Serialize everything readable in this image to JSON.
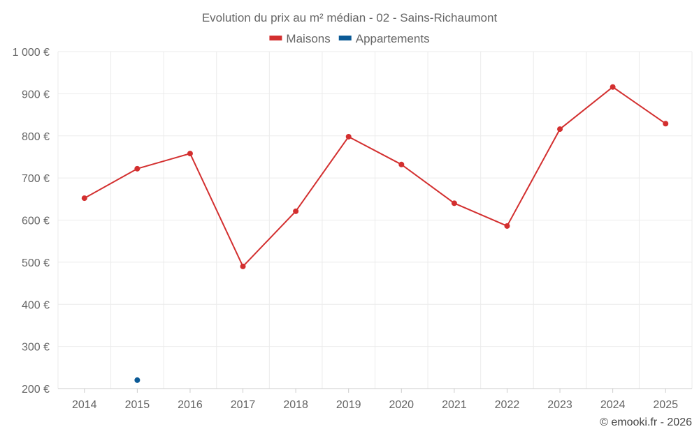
{
  "chart_data": {
    "type": "line",
    "title": "Evolution du prix au m² médian - 02 - Sains-Richaumont",
    "xlabel": "",
    "ylabel": "",
    "categories": [
      "2014",
      "2015",
      "2016",
      "2017",
      "2018",
      "2019",
      "2020",
      "2021",
      "2022",
      "2023",
      "2024",
      "2025"
    ],
    "y_ticks": [
      "200 €",
      "300 €",
      "400 €",
      "500 €",
      "600 €",
      "700 €",
      "800 €",
      "900 €",
      "1 000 €"
    ],
    "ylim": [
      200,
      1000
    ],
    "grid": true,
    "legend_position": "top",
    "series": [
      {
        "name": "Maisons",
        "color": "#d32f2f",
        "values": [
          652,
          722,
          758,
          490,
          621,
          798,
          732,
          640,
          586,
          816,
          916,
          829
        ]
      },
      {
        "name": "Appartements",
        "color": "#0b5a96",
        "values": [
          null,
          220,
          null,
          null,
          null,
          null,
          null,
          null,
          null,
          null,
          null,
          null
        ]
      }
    ]
  },
  "credit": "© emooki.fr - 2026"
}
